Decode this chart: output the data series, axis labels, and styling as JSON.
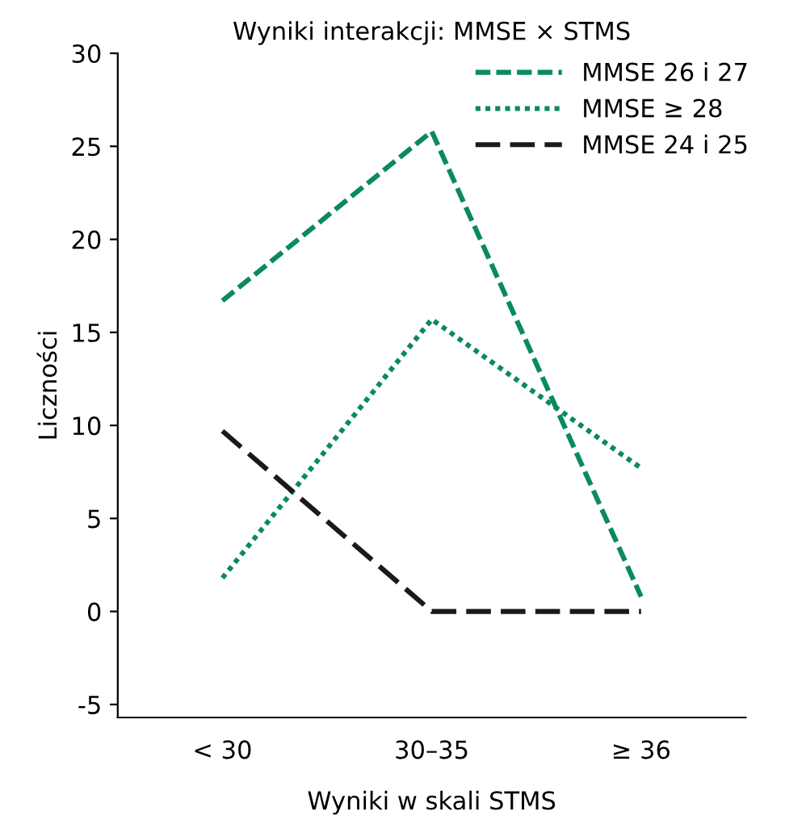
{
  "chart_data": {
    "type": "line",
    "title": "Wyniki interakcji: MMSE × STMS",
    "xlabel": "Wyniki w skali STMS",
    "ylabel": "Liczności",
    "categories": [
      "< 30",
      "30–35",
      "≥ 36"
    ],
    "series": [
      {
        "name": "MMSE 26 i 27",
        "color": "#0b8a5c",
        "line_style": "dashed",
        "values": [
          16.7,
          25.8,
          0.8
        ]
      },
      {
        "name": "MMSE ≥ 28",
        "color": "#0b8a5c",
        "line_style": "dotted",
        "values": [
          1.8,
          15.7,
          7.7
        ]
      },
      {
        "name": "MMSE 24 i 25",
        "color": "#1a1a1a",
        "line_style": "dashed",
        "values": [
          9.7,
          0,
          0
        ]
      }
    ],
    "ylim": [
      -5.7,
      30
    ],
    "yticks": [
      -5,
      0,
      5,
      10,
      15,
      20,
      25,
      30
    ],
    "grid": false,
    "legend": "top right",
    "marker": "none"
  }
}
